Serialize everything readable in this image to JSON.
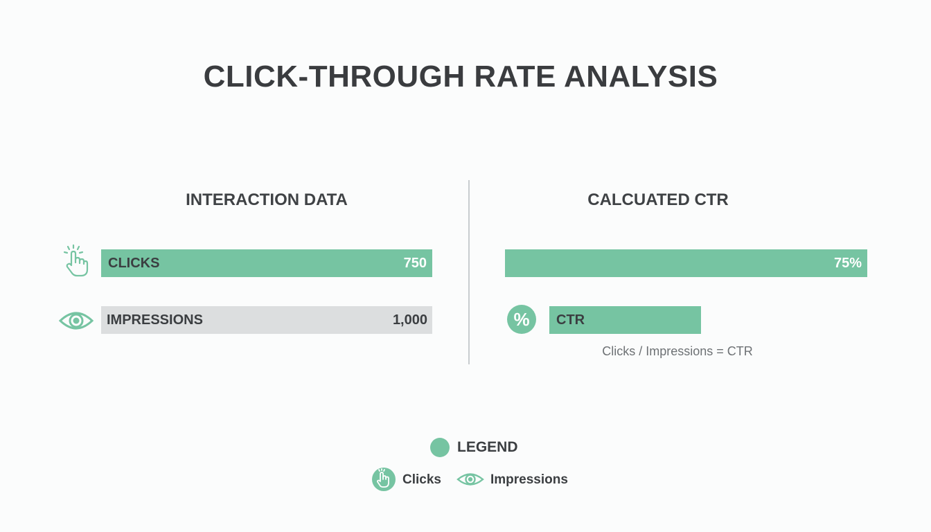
{
  "title": "CLICK-THROUGH RATE ANALYSIS",
  "colors": {
    "accent": "#76c4a2",
    "neutral": "#dcdedf",
    "text": "#3b3e41"
  },
  "left_section": {
    "title": "INTERACTION DATA",
    "rows": [
      {
        "label": "CLICKS",
        "value": "750",
        "icon": "hand-pointer-icon"
      },
      {
        "label": "IMPRESSIONS",
        "value": "1,000",
        "icon": "eye-icon"
      }
    ]
  },
  "right_section": {
    "title": "CALCUATED CTR",
    "ctr_value": "75%",
    "ctr_label": "CTR",
    "ctr_icon": "percent-icon",
    "percent_symbol": "%",
    "formula": "Clicks / Impressions = CTR"
  },
  "legend": {
    "title": "LEGEND",
    "items": [
      {
        "label": "Clicks",
        "icon": "hand-pointer-icon"
      },
      {
        "label": "Impressions",
        "icon": "eye-icon"
      }
    ]
  },
  "chart_data": {
    "type": "bar",
    "title": "CLICK-THROUGH RATE ANALYSIS",
    "categories": [
      "CLICKS",
      "IMPRESSIONS"
    ],
    "values": [
      750,
      1000
    ],
    "ctr_percent": 75,
    "ctr_bar_fraction": 0.42,
    "legend": [
      "Clicks",
      "Impressions"
    ],
    "legend_position": "bottom-center"
  }
}
